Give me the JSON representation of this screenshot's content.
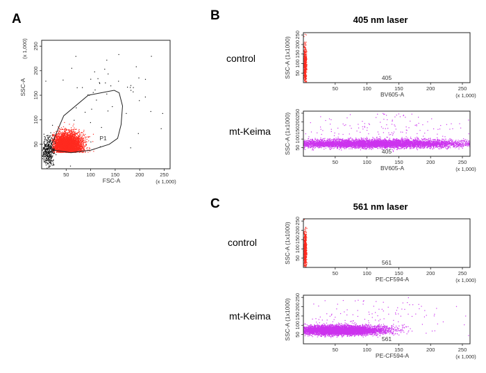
{
  "colors": {
    "gated_events": "#ff2a1f",
    "ungated_events": "#111111",
    "keima_events": "#cc33ee"
  },
  "chart_data": [
    {
      "panel": "A",
      "type": "scatter",
      "xlabel": "FSC-A",
      "ylabel": "SSC-A",
      "x_scale": "(x 1,000)",
      "y_scale": "(x 1,000)",
      "xlim": [
        0,
        262
      ],
      "ylim": [
        0,
        262
      ],
      "x_ticks": [
        "50",
        "100",
        "150",
        "200",
        "250"
      ],
      "y_ticks": [
        "50",
        "100",
        "150",
        "200",
        "250"
      ],
      "gate": {
        "label": "P1",
        "polygon": [
          [
            18,
            45
          ],
          [
            45,
            108
          ],
          [
            95,
            150
          ],
          [
            148,
            160
          ],
          [
            158,
            155
          ],
          [
            165,
            128
          ],
          [
            162,
            90
          ],
          [
            155,
            62
          ],
          [
            138,
            50
          ],
          [
            100,
            38
          ],
          [
            60,
            33
          ],
          [
            25,
            38
          ]
        ]
      },
      "populations": [
        {
          "name": "",
          "color": "#ff2a1f",
          "cx": 52,
          "cy": 48,
          "sx": 16,
          "sy": 13,
          "count": 4500,
          "xmin": 20,
          "xmax": 160,
          "ymin": 34,
          "ymax": 150
        },
        {
          "name": "",
          "color": "#111111",
          "cx": 12,
          "cy": 35,
          "sx": 6,
          "sy": 14,
          "count": 380,
          "xmin": 0,
          "xmax": 30,
          "ymin": 0,
          "ymax": 120
        },
        {
          "name": "",
          "color": "#111111",
          "cx": 120,
          "cy": 150,
          "sx": 70,
          "sy": 55,
          "count": 60,
          "xmin": 0,
          "xmax": 250,
          "ymin": 0,
          "ymax": 255
        }
      ]
    },
    {
      "panel": "B",
      "type": "scatter",
      "laser": "405 nm laser",
      "row_label": "control",
      "gate_label": "405",
      "xlabel": "BV605-A",
      "ylabel": "SSC-A (1x1000)",
      "x_scale": "(x 1,000)",
      "xlim": [
        0,
        262
      ],
      "ylim": [
        0,
        262
      ],
      "x_ticks": [
        "50",
        "100",
        "150",
        "200",
        "250"
      ],
      "y_ticks": [
        "50",
        "100",
        "150",
        "200",
        "250"
      ],
      "populations": [
        {
          "name": "",
          "color": "#ff2a1f",
          "cx": 2,
          "cy": 95,
          "sx": 1.5,
          "sy": 55,
          "count": 500,
          "xmin": 0,
          "xmax": 5,
          "ymin": 0,
          "ymax": 262
        }
      ]
    },
    {
      "panel": "B",
      "type": "scatter",
      "laser": "405 nm laser",
      "row_label": "mt-Keima",
      "gate_label": "405",
      "xlabel": "BV605-A",
      "ylabel": "SSC-A (1x1000)",
      "x_scale": "(x 1,000)",
      "xlim": [
        0,
        262
      ],
      "ylim": [
        0,
        262
      ],
      "x_ticks": [
        "50",
        "100",
        "150",
        "200",
        "250"
      ],
      "y_ticks": [
        "50",
        "100",
        "150",
        "200",
        "250"
      ],
      "populations": [
        {
          "name": "",
          "color": "#cc33ee",
          "cx": 110,
          "cy": 75,
          "sx": 80,
          "sy": 12,
          "count": 6000,
          "xmin": 0,
          "xmax": 262,
          "ymin": 35,
          "ymax": 140
        },
        {
          "name": "",
          "color": "#cc33ee",
          "cx": 130,
          "cy": 150,
          "sx": 70,
          "sy": 55,
          "count": 160,
          "xmin": 0,
          "xmax": 262,
          "ymin": 30,
          "ymax": 255
        }
      ]
    },
    {
      "panel": "C",
      "type": "scatter",
      "laser": "561 nm laser",
      "row_label": "control",
      "gate_label": "561",
      "xlabel": "PE-CF594-A",
      "ylabel": "SSC-A (1x1000)",
      "x_scale": "(x 1,000)",
      "xlim": [
        0,
        262
      ],
      "ylim": [
        0,
        262
      ],
      "x_ticks": [
        "50",
        "100",
        "150",
        "200",
        "250"
      ],
      "y_ticks": [
        "50",
        "100",
        "150",
        "200",
        "250"
      ],
      "populations": [
        {
          "name": "",
          "color": "#ff2a1f",
          "cx": 2,
          "cy": 95,
          "sx": 1.5,
          "sy": 55,
          "count": 500,
          "xmin": 0,
          "xmax": 5,
          "ymin": 0,
          "ymax": 262
        }
      ]
    },
    {
      "panel": "C",
      "type": "scatter",
      "laser": "561 nm laser",
      "row_label": "mt-Keima",
      "gate_label": "561",
      "xlabel": "PE-CF594-A",
      "ylabel": "SSC-A (1x1000)",
      "x_scale": "(x 1,000)",
      "xlim": [
        0,
        262
      ],
      "ylim": [
        0,
        262
      ],
      "x_ticks": [
        "50",
        "100",
        "150",
        "200",
        "250"
      ],
      "y_ticks": [
        "50",
        "100",
        "150",
        "200",
        "250"
      ],
      "populations": [
        {
          "name": "",
          "color": "#cc33ee",
          "cx": 55,
          "cy": 75,
          "sx": 35,
          "sy": 12,
          "count": 6000,
          "xmin": 0,
          "xmax": 262,
          "ymin": 35,
          "ymax": 140
        },
        {
          "name": "",
          "color": "#cc33ee",
          "cx": 110,
          "cy": 150,
          "sx": 70,
          "sy": 55,
          "count": 130,
          "xmin": 0,
          "xmax": 262,
          "ymin": 30,
          "ymax": 255
        }
      ]
    }
  ]
}
